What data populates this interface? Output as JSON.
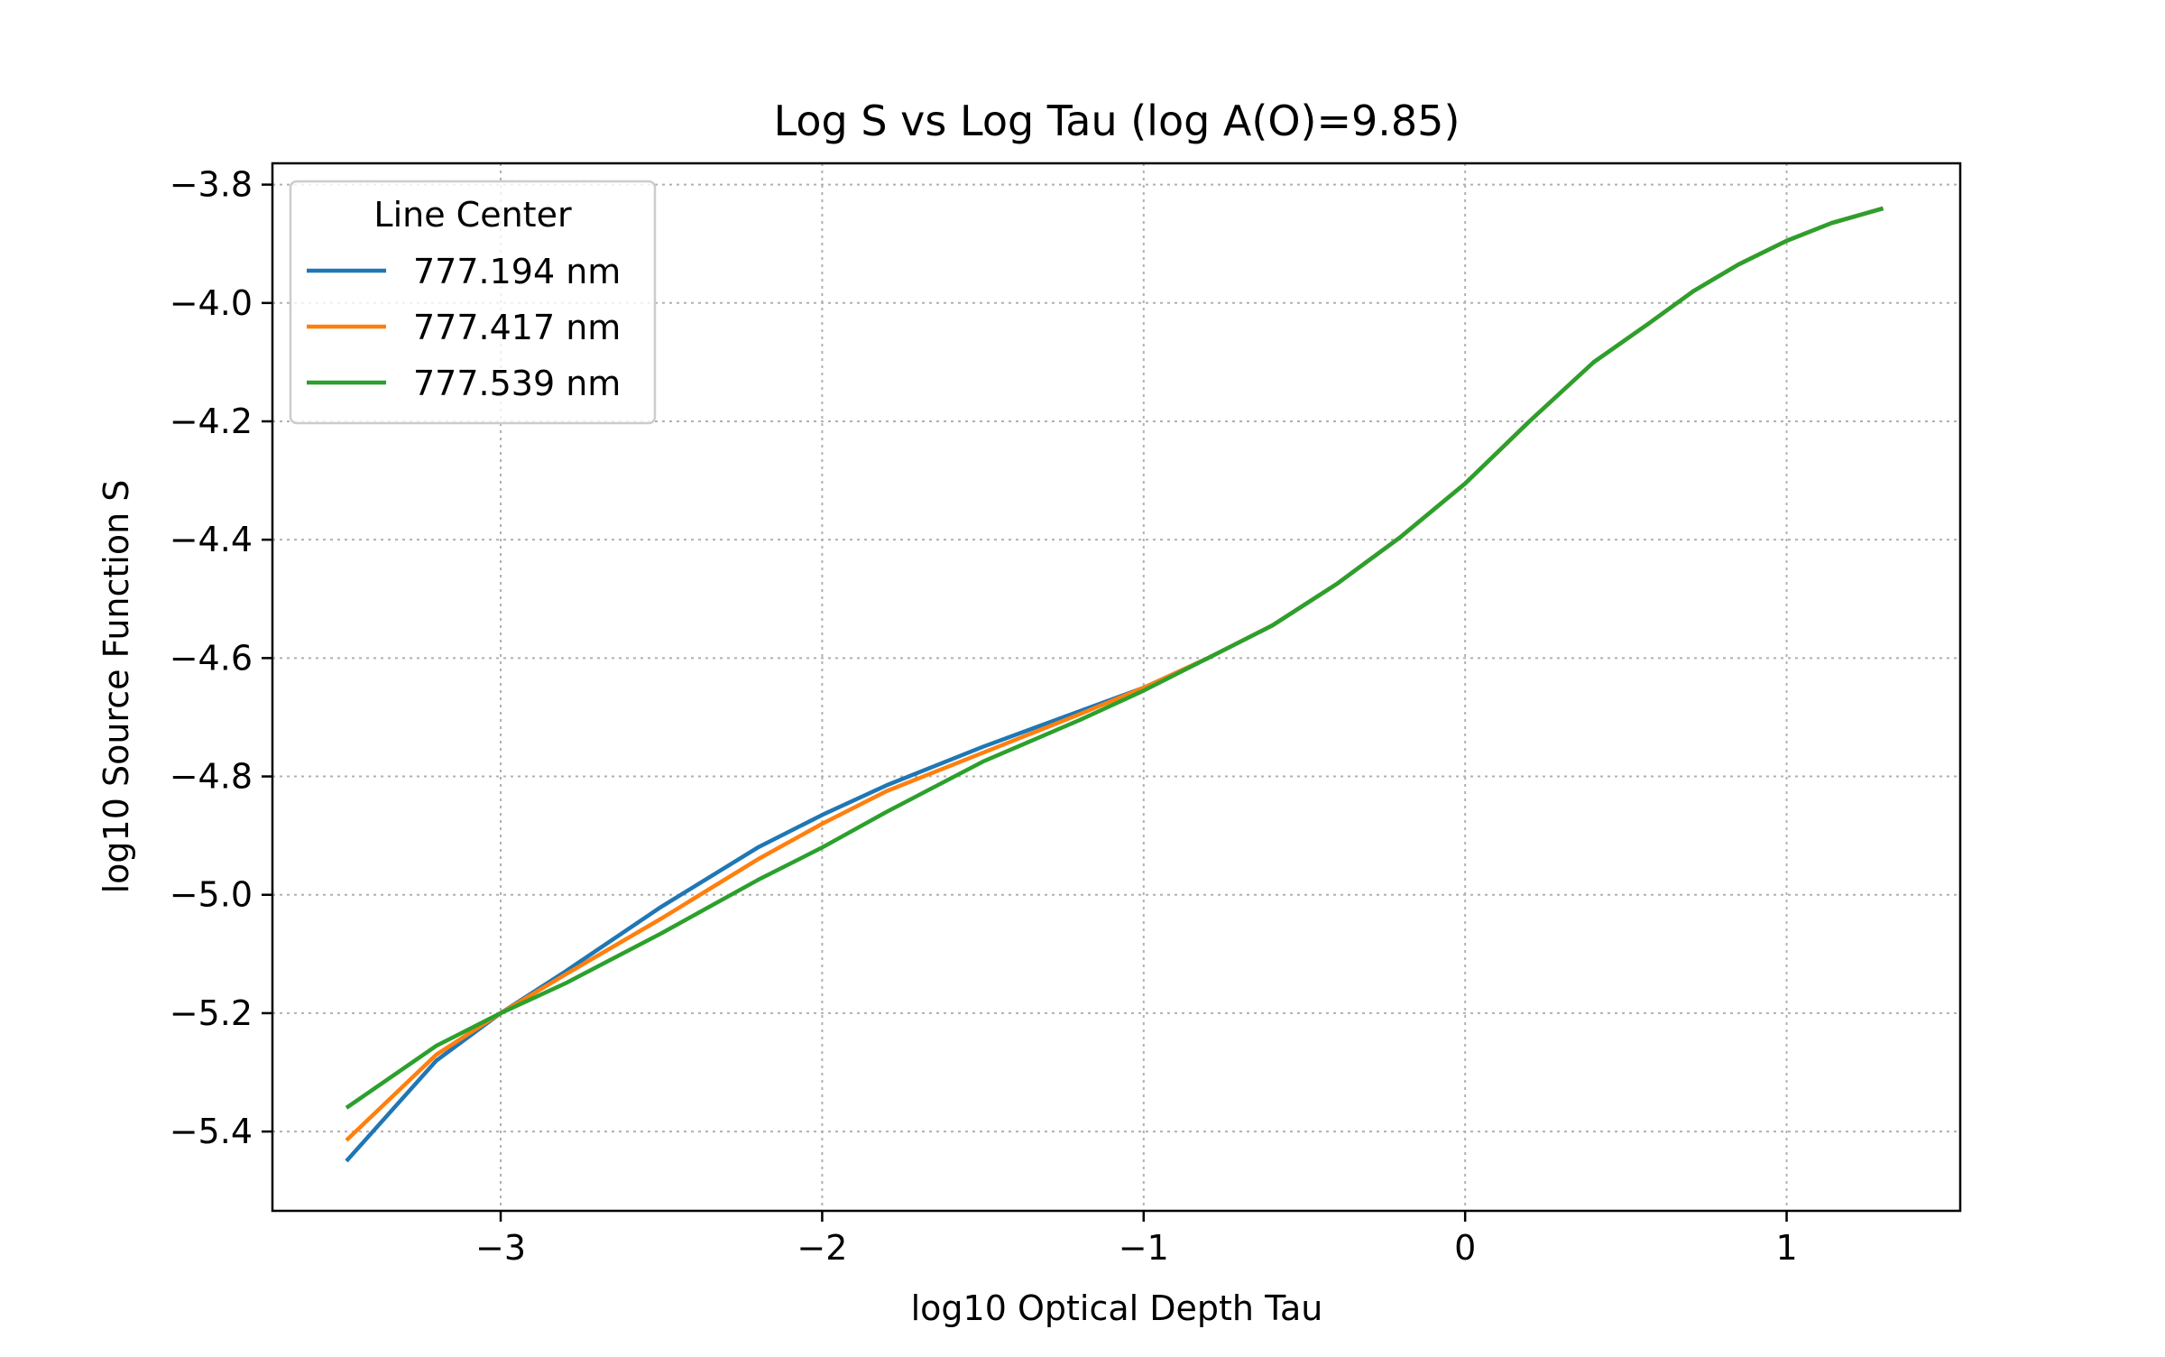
{
  "chart_data": {
    "type": "line",
    "title": "Log S vs Log Tau (log A(O)=9.85)",
    "xlabel": "log10 Optical Depth Tau",
    "ylabel": "log10 Source Function S",
    "xlim": [
      -3.71,
      1.54
    ],
    "ylim": [
      -5.534,
      -3.764
    ],
    "xticks": [
      -3,
      -2,
      -1,
      0,
      1
    ],
    "xtick_labels": [
      "−3",
      "−2",
      "−1",
      "0",
      "1"
    ],
    "yticks": [
      -3.8,
      -4.0,
      -4.2,
      -4.4,
      -4.6,
      -4.8,
      -5.0,
      -5.2,
      -5.4
    ],
    "ytick_labels": [
      "−3.8",
      "−4.0",
      "−4.2",
      "−4.4",
      "−4.6",
      "−4.8",
      "−5.0",
      "−5.2",
      "−5.4"
    ],
    "grid": true,
    "legend": {
      "title": "Line Center",
      "location": "upper left"
    },
    "series": [
      {
        "name": "777.194 nm",
        "color": "#1f77b4",
        "x": [
          -3.48,
          -3.2,
          -3.0,
          -2.8,
          -2.5,
          -2.2,
          -2.0,
          -1.8,
          -1.5,
          -1.2,
          -1.0,
          -0.8,
          -0.6,
          -0.4,
          -0.2,
          0.0,
          0.2,
          0.4,
          0.57,
          0.71,
          0.85,
          1.0,
          1.14,
          1.3
        ],
        "y": [
          -5.45,
          -5.28,
          -5.2,
          -5.13,
          -5.02,
          -4.92,
          -4.865,
          -4.815,
          -4.75,
          -4.69,
          -4.65,
          -4.6,
          -4.545,
          -4.475,
          -4.395,
          -4.305,
          -4.2,
          -4.1,
          -4.035,
          -3.98,
          -3.935,
          -3.895,
          -3.865,
          -3.84
        ]
      },
      {
        "name": "777.417 nm",
        "color": "#ff7f0e",
        "x": [
          -3.48,
          -3.2,
          -3.0,
          -2.8,
          -2.5,
          -2.2,
          -2.0,
          -1.8,
          -1.5,
          -1.2,
          -1.0,
          -0.8,
          -0.6,
          -0.4,
          -0.2,
          0.0,
          0.2,
          0.4,
          0.57,
          0.71,
          0.85,
          1.0,
          1.14,
          1.3
        ],
        "y": [
          -5.415,
          -5.27,
          -5.2,
          -5.135,
          -5.04,
          -4.94,
          -4.88,
          -4.825,
          -4.76,
          -4.695,
          -4.65,
          -4.6,
          -4.545,
          -4.475,
          -4.395,
          -4.305,
          -4.2,
          -4.1,
          -4.035,
          -3.98,
          -3.935,
          -3.895,
          -3.865,
          -3.84
        ]
      },
      {
        "name": "777.539 nm",
        "color": "#2ca02c",
        "x": [
          -3.48,
          -3.2,
          -3.0,
          -2.8,
          -2.5,
          -2.2,
          -2.0,
          -1.8,
          -1.5,
          -1.2,
          -1.0,
          -0.8,
          -0.6,
          -0.4,
          -0.2,
          0.0,
          0.2,
          0.4,
          0.57,
          0.71,
          0.85,
          1.0,
          1.14,
          1.3
        ],
        "y": [
          -5.36,
          -5.255,
          -5.2,
          -5.15,
          -5.065,
          -4.975,
          -4.92,
          -4.86,
          -4.775,
          -4.705,
          -4.655,
          -4.6,
          -4.545,
          -4.475,
          -4.395,
          -4.305,
          -4.2,
          -4.1,
          -4.035,
          -3.98,
          -3.935,
          -3.895,
          -3.865,
          -3.84
        ]
      }
    ]
  }
}
